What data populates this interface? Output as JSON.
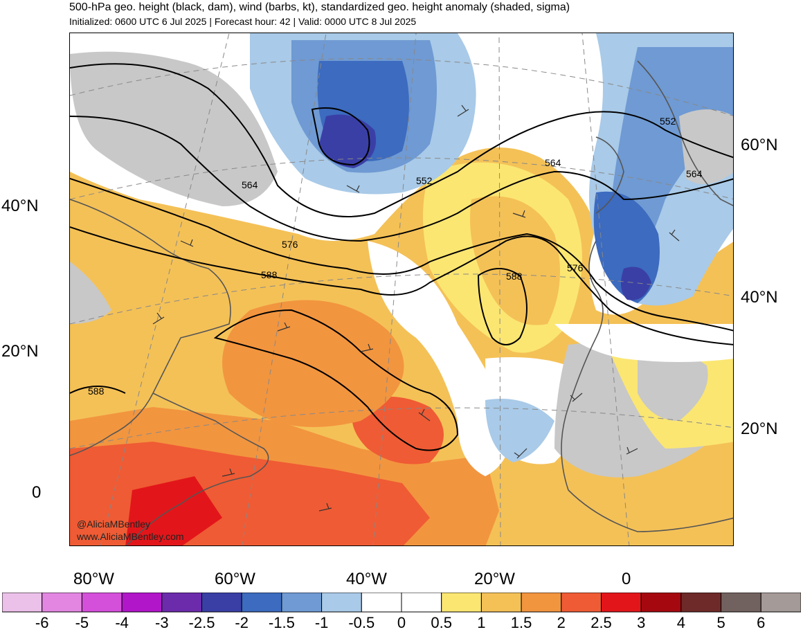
{
  "header": {
    "title": "500-hPa geo. height (black, dam), wind (barbs, kt), standardized geo. height anomaly (shaded, sigma)",
    "subtitle": "Initialized: 0600 UTC 6 Jul 2025 | Forecast hour: 42 | Valid: 0000 UTC 8 Jul 2025"
  },
  "map": {
    "credit_handle": "@AliciaMBentley",
    "credit_url": "www.AliciaMBentley.com",
    "contour_labels": [
      "564",
      "552",
      "576",
      "588",
      "564",
      "588",
      "576",
      "552",
      "564",
      "588"
    ],
    "colors": {
      "land_gray": "#c8c8c8",
      "coast": "#555555"
    }
  },
  "axes": {
    "lat_left": [
      "40°N",
      "20°N",
      "0"
    ],
    "lat_right": [
      "60°N",
      "40°N",
      "20°N"
    ],
    "lon_bottom": [
      "80°W",
      "60°W",
      "40°W",
      "20°W",
      "0"
    ]
  },
  "colorbar": {
    "colors": [
      "#ebc0e9",
      "#e386e2",
      "#d550da",
      "#b116c9",
      "#6c2bab",
      "#3a3fa6",
      "#3c6bbf",
      "#6f9ad3",
      "#a9cae8",
      "#ffffff",
      "#ffffff",
      "#fbe672",
      "#f4c157",
      "#f2953f",
      "#ef5b34",
      "#e2161a",
      "#a5090f",
      "#6e2a28",
      "#72625f",
      "#a49a97"
    ],
    "labels": [
      "-6",
      "-5",
      "-4",
      "-3",
      "-2.5",
      "-2",
      "-1.5",
      "-1",
      "-0.5",
      "0",
      "0.5",
      "1",
      "1.5",
      "2",
      "2.5",
      "3",
      "4",
      "5",
      "6"
    ]
  }
}
